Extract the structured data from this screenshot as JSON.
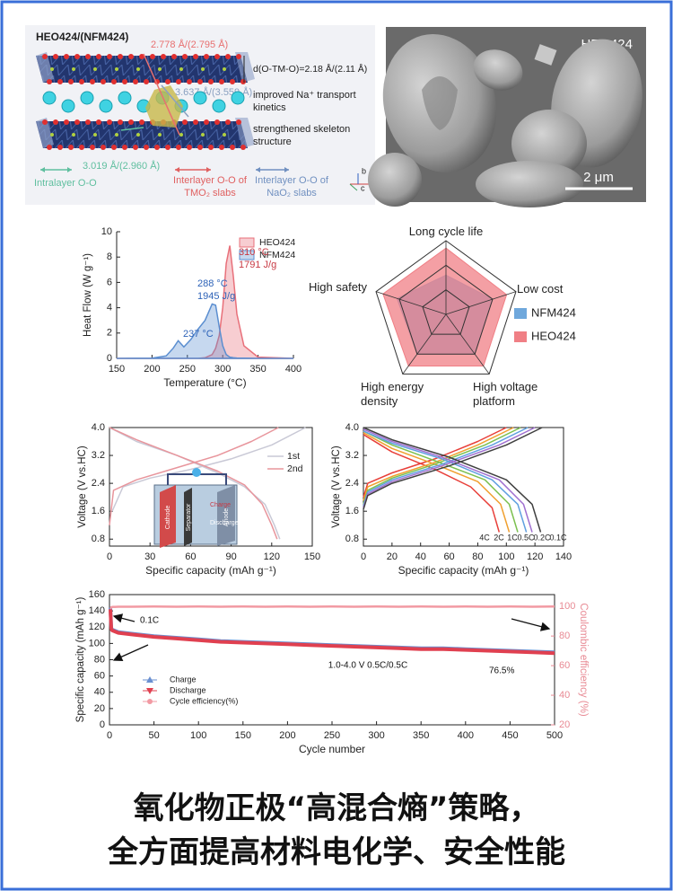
{
  "structure": {
    "title": "HEO424/(NFM424)",
    "tm_distance": "2.778 Å/(2.795 Å)",
    "slab_spacing": "d(O-TM-O)=2.18 Å/(2.11 Å)",
    "na_distance": "3.637 Å/(3.559 Å)",
    "note_kinetics": "improved Na⁺ transport kinetics",
    "note_skeleton": "strengthened skeleton structure",
    "intra_distance": "3.019 Å/(2.960 Å)",
    "legend": [
      "Intralayer O-O",
      "Interlayer O-O of TMO₂ slabs",
      "Interlayer O-O of NaO₂ slabs"
    ],
    "axes": [
      "a",
      "b",
      "c"
    ]
  },
  "sem": {
    "label": "HEO424",
    "scale": "2 μm"
  },
  "chart_data": [
    {
      "type": "area",
      "xlabel": "Temperature (°C)",
      "ylabel": "Heat Flow (W g⁻¹)",
      "x": [
        150,
        200,
        220,
        230,
        237,
        245,
        255,
        265,
        275,
        285,
        290,
        295,
        300,
        305,
        310,
        315,
        320,
        330,
        350,
        400
      ],
      "series": [
        {
          "name": "HEO424",
          "color": "#e8707a",
          "values": [
            0,
            0,
            0,
            0,
            0,
            0,
            0,
            0,
            0.05,
            0.3,
            0.8,
            1.8,
            4.0,
            7.5,
            8.9,
            6.5,
            3.5,
            1.0,
            0.1,
            0
          ]
        },
        {
          "name": "NFM424",
          "color": "#5b8ed0",
          "values": [
            0,
            0.02,
            0.2,
            0.8,
            1.4,
            0.9,
            1.5,
            2.3,
            3.0,
            4.3,
            4.2,
            2.5,
            1.0,
            0.3,
            0.1,
            0.05,
            0.03,
            0.02,
            0,
            0
          ]
        }
      ],
      "xlim": [
        150,
        400
      ],
      "xticks": [
        150,
        200,
        250,
        300,
        350,
        400
      ],
      "ylim": [
        0,
        10
      ],
      "yticks": [
        0,
        2,
        4,
        6,
        8,
        10
      ],
      "legend": "upper right",
      "annotations": [
        "237 °C",
        "288 °C",
        "1945 J/g",
        "310 °C",
        "1791 J/g"
      ]
    },
    {
      "type": "radar",
      "axes": [
        "Long cycle life",
        "Low cost",
        "High voltage platform",
        "High energy density",
        "High safety"
      ],
      "rlim": [
        0,
        3
      ],
      "rticks": [
        1,
        2,
        3
      ],
      "legend": "right",
      "series": [
        {
          "name": "NFM424",
          "color": "#6fa8dc",
          "values": [
            1.6,
            2.0,
            2.0,
            2.0,
            2.1
          ]
        },
        {
          "name": "HEO424",
          "color": "#f07f85",
          "values": [
            2.7,
            2.6,
            2.6,
            2.6,
            2.7
          ]
        }
      ]
    },
    {
      "type": "line",
      "xlabel": "Specific capacity (mAh g⁻¹)",
      "ylabel": "Voltage (V vs.HC)",
      "xlim": [
        0,
        150
      ],
      "xticks": [
        0,
        30,
        60,
        90,
        120,
        150
      ],
      "ylim": [
        0.6,
        4.0
      ],
      "yticks": [
        0.8,
        1.6,
        2.4,
        3.2,
        {
          "value": 4,
          "label": "4.0"
        }
      ],
      "legend": "upper right",
      "series": [
        {
          "name": "1st",
          "color": "#c9c9d6",
          "x": [
            2,
            10,
            30,
            60,
            90,
            120,
            145,
            null,
            0,
            20,
            50,
            80,
            100,
            115,
            122,
            126
          ],
          "values": [
            1.6,
            2.3,
            2.55,
            2.8,
            3.1,
            3.5,
            4.0,
            null,
            4.0,
            3.6,
            3.2,
            2.7,
            2.3,
            1.8,
            1.2,
            0.8
          ]
        },
        {
          "name": "2nd",
          "color": "#e8959c",
          "x": [
            0,
            3,
            20,
            50,
            80,
            105,
            125,
            null,
            0,
            20,
            50,
            80,
            100,
            113,
            120,
            124
          ],
          "values": [
            1.2,
            2.2,
            2.5,
            2.85,
            3.2,
            3.6,
            4.0,
            null,
            4.0,
            3.65,
            3.2,
            2.75,
            2.35,
            1.8,
            1.2,
            0.8
          ]
        }
      ],
      "inset_labels": [
        "Cathode",
        "Separator",
        "Anode",
        "Charge",
        "Discharge"
      ]
    },
    {
      "type": "line",
      "xlabel": "Specific capacity (mAh g⁻¹)",
      "ylabel": "Voltage (V vs.HC)",
      "xlim": [
        0,
        140
      ],
      "xticks": [
        0,
        20,
        40,
        60,
        80,
        100,
        120,
        140
      ],
      "ylim": [
        0.6,
        4.0
      ],
      "yticks": [
        0.8,
        1.6,
        2.4,
        3.2,
        {
          "value": 4,
          "label": "4.0"
        }
      ],
      "legend": "inline",
      "series": [
        {
          "name": "4C",
          "color": "#e8403a",
          "x": [
            0,
            3,
            20,
            50,
            80,
            100,
            null,
            0,
            20,
            50,
            75,
            90,
            95
          ],
          "values": [
            2.0,
            2.4,
            2.7,
            3.1,
            3.6,
            4.0,
            null,
            3.8,
            3.3,
            2.8,
            2.3,
            1.7,
            1.0
          ]
        },
        {
          "name": "2C",
          "color": "#f0a030",
          "x": [
            0,
            3,
            20,
            50,
            80,
            105,
            null,
            0,
            20,
            50,
            80,
            96,
            102
          ],
          "values": [
            1.9,
            2.3,
            2.6,
            3.0,
            3.5,
            4.0,
            null,
            3.85,
            3.4,
            2.95,
            2.45,
            1.8,
            1.0
          ]
        },
        {
          "name": "1C",
          "color": "#7cc050",
          "x": [
            0,
            3,
            20,
            50,
            85,
            110,
            null,
            0,
            20,
            50,
            85,
            102,
            108
          ],
          "values": [
            1.8,
            2.2,
            2.55,
            2.95,
            3.5,
            4.0,
            null,
            3.9,
            3.5,
            3.05,
            2.5,
            1.8,
            1.0
          ]
        },
        {
          "name": "0.5C",
          "color": "#60a0e0",
          "x": [
            0,
            3,
            20,
            55,
            90,
            115,
            null,
            0,
            20,
            55,
            90,
            108,
            114
          ],
          "values": [
            1.75,
            2.15,
            2.5,
            2.95,
            3.5,
            4.0,
            null,
            3.9,
            3.55,
            3.1,
            2.5,
            1.8,
            1.0
          ]
        },
        {
          "name": "0.2C",
          "color": "#a070d0",
          "x": [
            0,
            3,
            20,
            55,
            95,
            120,
            null,
            0,
            20,
            55,
            95,
            112,
            118
          ],
          "values": [
            1.7,
            2.1,
            2.45,
            2.9,
            3.5,
            4.0,
            null,
            3.95,
            3.6,
            3.15,
            2.5,
            1.8,
            1.0
          ]
        },
        {
          "name": "0.1C",
          "color": "#404040",
          "x": [
            0,
            3,
            20,
            60,
            100,
            125,
            null,
            0,
            20,
            60,
            100,
            118,
            124
          ],
          "values": [
            1.65,
            2.05,
            2.4,
            2.9,
            3.5,
            4.0,
            null,
            4.0,
            3.65,
            3.15,
            2.5,
            1.8,
            1.0
          ]
        }
      ]
    },
    {
      "type": "line",
      "xlabel": "Cycle number",
      "ylabel": "Specific capacity (mAh g⁻¹)",
      "y2label": "Coulombic efficiency (%)",
      "x": [
        1,
        2,
        3,
        10,
        25,
        50,
        75,
        100,
        125,
        150,
        175,
        200,
        225,
        250,
        275,
        300,
        325,
        350,
        375,
        400,
        425,
        450,
        475,
        500
      ],
      "series": [
        {
          "name": "Charge",
          "color": "#6a8fd0",
          "marker": "triangle-up",
          "values": [
            144,
            119,
            117,
            114,
            112,
            109,
            107,
            105,
            103,
            102,
            101,
            100,
            99,
            98,
            97,
            96,
            95,
            94,
            94,
            93,
            92,
            91,
            90,
            89
          ]
        },
        {
          "name": "Discharge",
          "color": "#e04050",
          "marker": "triangle-down",
          "values": [
            142,
            118,
            116,
            113,
            111,
            108,
            106,
            104,
            102,
            101,
            100,
            99,
            98,
            97,
            96,
            95,
            94,
            93,
            93,
            92,
            91,
            90,
            89,
            88
          ]
        },
        {
          "name": "Cycle efficiency(%)",
          "color": "#f29aa3",
          "marker": "circle",
          "axis": "y2",
          "values": [
            98.5,
            99.5,
            99.6,
            99.8,
            99.8,
            99.9,
            99.8,
            99.9,
            99.8,
            99.9,
            99.8,
            99.9,
            99.8,
            99.9,
            99.8,
            99.9,
            99.8,
            99.9,
            99.8,
            99.9,
            99.8,
            99.9,
            99.8,
            99.9
          ]
        }
      ],
      "xlim": [
        0,
        500
      ],
      "xticks": [
        0,
        50,
        100,
        150,
        200,
        250,
        300,
        350,
        400,
        450,
        500
      ],
      "ylim": [
        0,
        160
      ],
      "yticks": [
        0,
        20,
        40,
        60,
        80,
        100,
        120,
        140,
        160
      ],
      "y2lim": [
        20,
        108
      ],
      "y2ticks": [
        20,
        40,
        60,
        80,
        100
      ],
      "legend": "lower left",
      "annotations": [
        "0.1C",
        "1.0-4.0 V 0.5C/0.5C",
        "76.5%"
      ]
    }
  ],
  "caption": [
    "氧化物正极“高混合熵”策略，",
    "全方面提高材料电化学、安全性能"
  ]
}
